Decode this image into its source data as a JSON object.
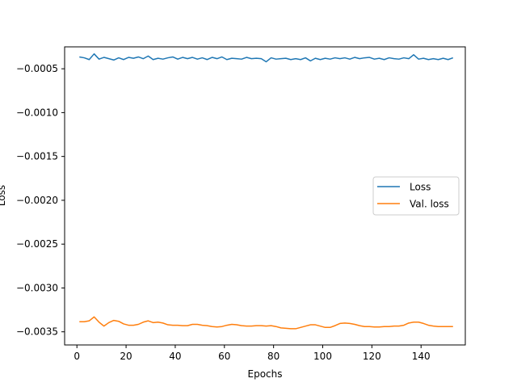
{
  "chart_data": {
    "type": "line",
    "title": "",
    "xlabel": "Epochs",
    "ylabel": "Loss",
    "xlim": [
      -5,
      158
    ],
    "ylim": [
      -0.00365,
      -0.00025
    ],
    "xticks": [
      0,
      20,
      40,
      60,
      80,
      100,
      120,
      140
    ],
    "yticks": [
      -0.0005,
      -0.001,
      -0.0015,
      -0.002,
      -0.0025,
      -0.003,
      -0.0035
    ],
    "ytick_labels": [
      "−0.0005",
      "−0.0010",
      "−0.0015",
      "−0.0020",
      "−0.0025",
      "−0.0030",
      "−0.0035"
    ],
    "grid": false,
    "legend_position": "center-right",
    "series": [
      {
        "name": "Loss",
        "color": "#1f77b4",
        "x": [
          1,
          3,
          5,
          7,
          9,
          11,
          13,
          15,
          17,
          19,
          21,
          23,
          25,
          27,
          29,
          31,
          33,
          35,
          37,
          39,
          41,
          43,
          45,
          47,
          49,
          51,
          53,
          55,
          57,
          59,
          61,
          63,
          65,
          67,
          69,
          71,
          73,
          75,
          77,
          79,
          81,
          83,
          85,
          87,
          89,
          91,
          93,
          95,
          97,
          99,
          101,
          103,
          105,
          107,
          109,
          111,
          113,
          115,
          117,
          119,
          121,
          123,
          125,
          127,
          129,
          131,
          133,
          135,
          137,
          139,
          141,
          143,
          145,
          147,
          149,
          151,
          153
        ],
        "y": [
          -0.000365,
          -0.000375,
          -0.000395,
          -0.00033,
          -0.00039,
          -0.00037,
          -0.000385,
          -0.0004,
          -0.000375,
          -0.000395,
          -0.00037,
          -0.00038,
          -0.000365,
          -0.000385,
          -0.000355,
          -0.000395,
          -0.00038,
          -0.00039,
          -0.000375,
          -0.000365,
          -0.00039,
          -0.00037,
          -0.000385,
          -0.00037,
          -0.00039,
          -0.000375,
          -0.000395,
          -0.00037,
          -0.000385,
          -0.000365,
          -0.000395,
          -0.00038,
          -0.000385,
          -0.00039,
          -0.00037,
          -0.000385,
          -0.00038,
          -0.000385,
          -0.00042,
          -0.000375,
          -0.00039,
          -0.000385,
          -0.00038,
          -0.000395,
          -0.000385,
          -0.000395,
          -0.000375,
          -0.00041,
          -0.00038,
          -0.000395,
          -0.00038,
          -0.00039,
          -0.000375,
          -0.000385,
          -0.000375,
          -0.00039,
          -0.00037,
          -0.000385,
          -0.000375,
          -0.00037,
          -0.00039,
          -0.00038,
          -0.000395,
          -0.000375,
          -0.000385,
          -0.00039,
          -0.000375,
          -0.000385,
          -0.00034,
          -0.00039,
          -0.00038,
          -0.000395,
          -0.000385,
          -0.000395,
          -0.00038,
          -0.000395,
          -0.000375
        ]
      },
      {
        "name": "Val. loss",
        "color": "#ff7f0e",
        "x": [
          1,
          3,
          5,
          7,
          9,
          11,
          13,
          15,
          17,
          19,
          21,
          23,
          25,
          27,
          29,
          31,
          33,
          35,
          37,
          39,
          41,
          43,
          45,
          47,
          49,
          51,
          53,
          55,
          57,
          59,
          61,
          63,
          65,
          67,
          69,
          71,
          73,
          75,
          77,
          79,
          81,
          83,
          85,
          87,
          89,
          91,
          93,
          95,
          97,
          99,
          101,
          103,
          105,
          107,
          109,
          111,
          113,
          115,
          117,
          119,
          121,
          123,
          125,
          127,
          129,
          131,
          133,
          135,
          137,
          139,
          141,
          143,
          145,
          147,
          149,
          151,
          153
        ],
        "y": [
          -0.003385,
          -0.003385,
          -0.003375,
          -0.00333,
          -0.00339,
          -0.003435,
          -0.003395,
          -0.00337,
          -0.00338,
          -0.00341,
          -0.003425,
          -0.003425,
          -0.003415,
          -0.00339,
          -0.003375,
          -0.003395,
          -0.00339,
          -0.0034,
          -0.00342,
          -0.003425,
          -0.003425,
          -0.00343,
          -0.00343,
          -0.003415,
          -0.003415,
          -0.003425,
          -0.00343,
          -0.00344,
          -0.003445,
          -0.00344,
          -0.003425,
          -0.003415,
          -0.00342,
          -0.00343,
          -0.003435,
          -0.003435,
          -0.00343,
          -0.00343,
          -0.003435,
          -0.00343,
          -0.00344,
          -0.003455,
          -0.00346,
          -0.003465,
          -0.003465,
          -0.00345,
          -0.003435,
          -0.00342,
          -0.00342,
          -0.003435,
          -0.00345,
          -0.00345,
          -0.00343,
          -0.003405,
          -0.0034,
          -0.003405,
          -0.003415,
          -0.00343,
          -0.00344,
          -0.00344,
          -0.003445,
          -0.003445,
          -0.00344,
          -0.00344,
          -0.003435,
          -0.003435,
          -0.003425,
          -0.0034,
          -0.00339,
          -0.00339,
          -0.003405,
          -0.003425,
          -0.003435,
          -0.00344,
          -0.00344,
          -0.00344,
          -0.00344
        ]
      }
    ]
  }
}
